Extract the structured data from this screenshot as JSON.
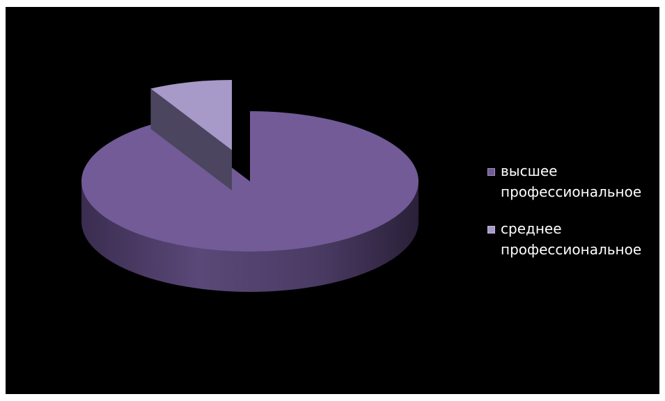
{
  "chart_data": {
    "type": "pie",
    "title": "",
    "categories": [
      "высшее профессиональное",
      "среднее профессиональное"
    ],
    "values": [
      92,
      8
    ],
    "colors": [
      "#725b97",
      "#a799c8"
    ],
    "exploded": [
      false,
      true
    ],
    "style": "3d",
    "legend_position": "right"
  },
  "legend": {
    "items": [
      {
        "label": "высшее профессиональное",
        "color": "#725b97"
      },
      {
        "label": "среднее профессиональное",
        "color": "#a799c8"
      }
    ]
  }
}
